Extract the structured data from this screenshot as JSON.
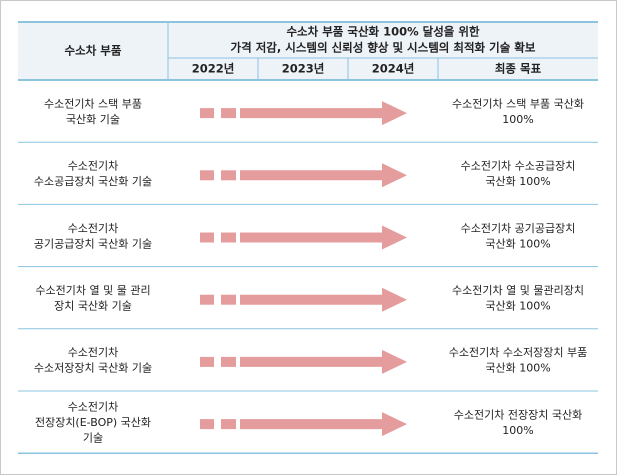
{
  "header": {
    "component_label": "수소차 부품",
    "title_lines": [
      "수소차 부품 국산화 100% 달성을 위한",
      "가격 저감, 시스템의 신뢰성 향상 및 시스템의 최적화 기술 확보"
    ],
    "years": [
      "2022년",
      "2023년",
      "2024년"
    ],
    "goal_label": "최종 목표"
  },
  "rows": [
    {
      "component": [
        "수소전기차 스택 부품",
        "국산화 기술"
      ],
      "goal": [
        "수소전기차 스택 부품 국산화",
        "100%"
      ]
    },
    {
      "component": [
        "수소전기차",
        "수소공급장치 국산화 기술"
      ],
      "goal": [
        "수소전기차 수소공급장치",
        "국산화 100%"
      ]
    },
    {
      "component": [
        "수소전기차",
        "공기공급장치 국산화 기술"
      ],
      "goal": [
        "수소전기차 공기공급장치",
        "국산화 100%"
      ]
    },
    {
      "component": [
        "수소전기차 열 및 물 관리",
        "장치 국산화 기술"
      ],
      "goal": [
        "수소전기차 열 및 물관리장치",
        "국산화 100%"
      ]
    },
    {
      "component": [
        "수소전기차",
        "수소저장장치 국산화 기술"
      ],
      "goal": [
        "수소전기차 수소저장장치 부품",
        "국산화 100%"
      ]
    },
    {
      "component": [
        "수소전기차",
        "전장장치(E-BOP) 국산화",
        "기술"
      ],
      "goal": [
        "수소전기차 전장장치 국산화",
        "100%"
      ]
    }
  ]
}
